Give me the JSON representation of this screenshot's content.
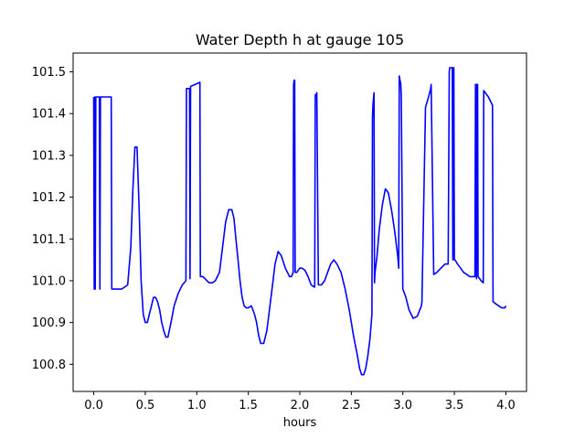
{
  "chart_data": {
    "type": "line",
    "title": "Water Depth h at gauge 105",
    "xlabel": "hours",
    "ylabel": "",
    "xlim": [
      -0.2,
      4.2
    ],
    "ylim": [
      100.735,
      101.545
    ],
    "x_ticks": [
      0.0,
      0.5,
      1.0,
      1.5,
      2.0,
      2.5,
      3.0,
      3.5,
      4.0
    ],
    "x_tick_labels": [
      "0.0",
      "0.5",
      "1.0",
      "1.5",
      "2.0",
      "2.5",
      "3.0",
      "3.5",
      "4.0"
    ],
    "y_ticks": [
      100.8,
      100.9,
      101.0,
      101.1,
      101.2,
      101.3,
      101.4,
      101.5
    ],
    "y_tick_labels": [
      "100.8",
      "100.9",
      "101.0",
      "101.1",
      "101.2",
      "101.3",
      "101.4",
      "101.5"
    ],
    "grid": false,
    "line_color": "#0000ff",
    "series": [
      {
        "x": [
          0.0,
          0.005,
          0.01,
          0.015,
          0.02,
          0.025,
          0.03,
          0.035,
          0.055,
          0.06,
          0.065,
          0.17,
          0.175,
          0.22,
          0.27,
          0.33,
          0.36,
          0.38,
          0.4,
          0.42,
          0.44,
          0.46,
          0.48,
          0.5,
          0.52,
          0.54,
          0.56,
          0.58,
          0.6,
          0.62,
          0.64,
          0.66,
          0.68,
          0.7,
          0.72,
          0.75,
          0.78,
          0.82,
          0.86,
          0.895,
          0.9,
          0.905,
          0.93,
          0.935,
          0.94,
          1.03,
          1.035,
          1.06,
          1.08,
          1.1,
          1.12,
          1.15,
          1.18,
          1.2,
          1.22,
          1.25,
          1.28,
          1.31,
          1.34,
          1.36,
          1.38,
          1.4,
          1.42,
          1.44,
          1.46,
          1.48,
          1.5,
          1.53,
          1.56,
          1.58,
          1.6,
          1.62,
          1.65,
          1.68,
          1.7,
          1.73,
          1.76,
          1.79,
          1.82,
          1.86,
          1.9,
          1.92,
          1.935,
          1.94,
          1.945,
          1.95,
          1.955,
          1.96,
          1.97,
          2.0,
          2.02,
          2.05,
          2.08,
          2.11,
          2.14,
          2.145,
          2.15,
          2.155,
          2.16,
          2.165,
          2.18,
          2.21,
          2.24,
          2.27,
          2.3,
          2.33,
          2.36,
          2.4,
          2.44,
          2.48,
          2.52,
          2.56,
          2.58,
          2.6,
          2.62,
          2.64,
          2.66,
          2.68,
          2.7,
          2.705,
          2.71,
          2.72,
          2.725,
          2.73,
          2.75,
          2.77,
          2.8,
          2.83,
          2.86,
          2.89,
          2.92,
          2.95,
          2.96,
          2.965,
          2.98,
          2.985,
          3.0,
          3.03,
          3.06,
          3.1,
          3.14,
          3.18,
          3.185,
          3.22,
          3.25,
          3.27,
          3.275,
          3.3,
          3.33,
          3.37,
          3.41,
          3.44,
          3.45,
          3.455,
          3.47,
          3.48,
          3.485,
          3.49,
          3.495,
          3.5,
          3.505,
          3.53,
          3.56,
          3.59,
          3.62,
          3.65,
          3.68,
          3.7,
          3.705,
          3.71,
          3.715,
          3.72,
          3.725,
          3.73,
          3.76,
          3.78,
          3.785,
          3.8,
          3.83,
          3.87,
          3.875,
          3.9,
          3.93,
          3.96,
          3.99,
          4.0
        ],
        "y": [
          101.44,
          100.98,
          101.44,
          100.98,
          101.44,
          101.44,
          101.44,
          101.44,
          101.44,
          100.98,
          101.44,
          101.44,
          100.98,
          100.98,
          100.98,
          100.99,
          101.08,
          101.22,
          101.32,
          101.32,
          101.18,
          101.0,
          100.92,
          100.9,
          100.9,
          100.92,
          100.94,
          100.96,
          100.96,
          100.95,
          100.93,
          100.9,
          100.88,
          100.865,
          100.865,
          100.9,
          100.94,
          100.97,
          100.99,
          101.0,
          101.46,
          101.46,
          101.46,
          101.005,
          101.465,
          101.475,
          101.01,
          101.01,
          101.005,
          101.0,
          100.995,
          100.995,
          101.0,
          101.01,
          101.02,
          101.08,
          101.14,
          101.17,
          101.17,
          101.15,
          101.1,
          101.05,
          101.0,
          100.96,
          100.94,
          100.935,
          100.935,
          100.94,
          100.92,
          100.9,
          100.87,
          100.85,
          100.85,
          100.88,
          100.92,
          100.98,
          101.04,
          101.07,
          101.06,
          101.03,
          101.01,
          101.01,
          101.02,
          101.47,
          101.48,
          101.48,
          101.02,
          101.02,
          101.02,
          101.03,
          101.03,
          101.025,
          101.01,
          100.99,
          100.985,
          100.985,
          101.445,
          101.445,
          101.445,
          101.45,
          100.99,
          100.99,
          101.0,
          101.02,
          101.04,
          101.05,
          101.04,
          101.02,
          100.98,
          100.93,
          100.87,
          100.82,
          100.79,
          100.775,
          100.775,
          100.79,
          100.82,
          100.86,
          100.92,
          101.39,
          101.42,
          101.45,
          100.995,
          101.02,
          101.06,
          101.12,
          101.18,
          101.22,
          101.21,
          101.17,
          101.12,
          101.06,
          101.03,
          101.49,
          101.47,
          101.44,
          100.98,
          100.96,
          100.93,
          100.91,
          100.915,
          100.94,
          100.95,
          101.415,
          101.44,
          101.46,
          101.47,
          101.015,
          101.02,
          101.03,
          101.04,
          101.04,
          101.5,
          101.51,
          101.51,
          101.51,
          101.05,
          101.51,
          101.51,
          101.05,
          101.05,
          101.04,
          101.03,
          101.02,
          101.015,
          101.01,
          101.01,
          101.01,
          101.47,
          101.47,
          101.005,
          101.47,
          101.47,
          101.01,
          101.0,
          100.995,
          101.455,
          101.45,
          101.44,
          101.42,
          100.95,
          100.945,
          100.94,
          100.935,
          100.935,
          100.94
        ]
      }
    ]
  }
}
